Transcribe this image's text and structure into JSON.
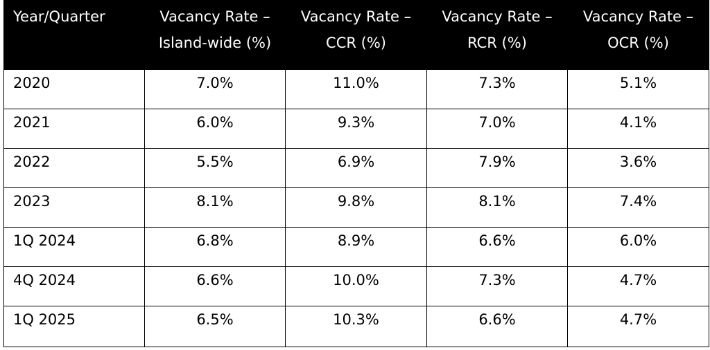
{
  "table": {
    "headers": [
      "Year/Quarter",
      "Vacancy Rate – Island-wide (%)",
      "Vacancy Rate – CCR (%)",
      "Vacancy Rate – RCR (%)",
      "Vacancy Rate – OCR (%)"
    ],
    "header_lines": [
      [
        "Year/Quarter"
      ],
      [
        "Vacancy Rate –",
        "Island-wide (%)"
      ],
      [
        "Vacancy Rate –",
        "CCR (%)"
      ],
      [
        "Vacancy Rate –",
        "RCR (%)"
      ],
      [
        "Vacancy Rate –",
        "OCR (%)"
      ]
    ],
    "rows": [
      [
        "2020",
        "7.0%",
        "11.0%",
        "7.3%",
        "5.1%"
      ],
      [
        "2021",
        "6.0%",
        "9.3%",
        "7.0%",
        "4.1%"
      ],
      [
        "2022",
        "5.5%",
        "6.9%",
        "7.9%",
        "3.6%"
      ],
      [
        "2023",
        "8.1%",
        "9.8%",
        "8.1%",
        "7.4%"
      ],
      [
        "1Q 2024",
        "6.8%",
        "8.9%",
        "6.6%",
        "6.0%"
      ],
      [
        "4Q 2024",
        "6.6%",
        "10.0%",
        "7.3%",
        "4.7%"
      ],
      [
        "1Q 2025",
        "6.5%",
        "10.3%",
        "6.6%",
        "4.7%"
      ]
    ]
  },
  "colors": {
    "header_background": "#000000",
    "header_text": "#ffffff",
    "body_text": "#000000",
    "grid_lines": "#000000"
  }
}
